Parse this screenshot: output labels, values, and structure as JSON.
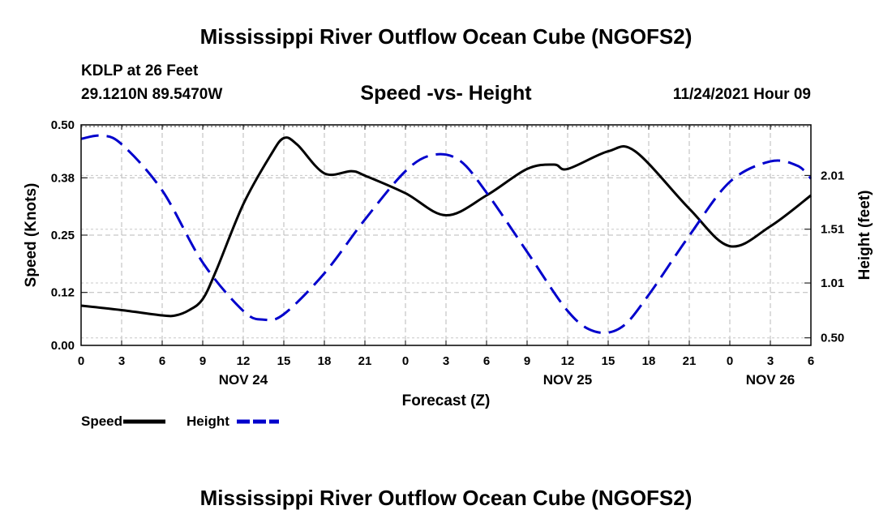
{
  "header": {
    "title": "Mississippi River Outflow Ocean Cube (NGOFS2)",
    "station": "KDLP at 26 Feet",
    "coords": "29.1210N  89.5470W",
    "subtitle": "Speed -vs- Height",
    "datetime": "11/24/2021 Hour 09"
  },
  "footer": {
    "title": "Mississippi River Outflow Ocean Cube (NGOFS2)"
  },
  "chart_data": {
    "type": "line",
    "xlabel": "Forecast (Z)",
    "ylabel_left": "Speed (Knots)",
    "ylabel_right": "Height (feet)",
    "x_range_hours": [
      0,
      54
    ],
    "x_ticks": [
      "0",
      "3",
      "6",
      "9",
      "12",
      "15",
      "18",
      "21",
      "0",
      "3",
      "6",
      "9",
      "12",
      "15",
      "18",
      "21",
      "0",
      "3",
      "6"
    ],
    "date_labels": [
      {
        "label": "NOV 24",
        "hour": 12
      },
      {
        "label": "NOV 25",
        "hour": 36
      },
      {
        "label": "NOV 26",
        "hour": 51
      }
    ],
    "left_axis": {
      "ylim": [
        0,
        0.5
      ],
      "ticks": [
        0.0,
        0.12,
        0.25,
        0.38,
        0.5
      ],
      "tick_labels": [
        "0.00",
        "0.12",
        "0.25",
        "0.38",
        "0.50"
      ]
    },
    "right_axis": {
      "ylim": [
        0.43,
        2.48
      ],
      "ticks": [
        0.5,
        1.01,
        1.51,
        2.01
      ],
      "tick_labels": [
        "0.50",
        "1.01",
        "1.51",
        "2.01"
      ]
    },
    "grid": true,
    "series": [
      {
        "name": "Speed",
        "axis": "left",
        "color": "#000000",
        "style": "solid",
        "x": [
          0,
          3,
          6,
          7,
          8,
          9,
          10,
          12,
          14,
          15,
          16,
          18,
          20,
          21,
          24,
          27,
          30,
          33,
          35,
          36,
          39,
          41,
          45,
          48,
          51,
          54
        ],
        "y": [
          0.09,
          0.08,
          0.068,
          0.068,
          0.08,
          0.105,
          0.17,
          0.32,
          0.43,
          0.47,
          0.455,
          0.39,
          0.395,
          0.385,
          0.345,
          0.295,
          0.34,
          0.4,
          0.41,
          0.4,
          0.44,
          0.44,
          0.31,
          0.225,
          0.27,
          0.34
        ]
      },
      {
        "name": "Height",
        "axis": "right",
        "color": "#0000cc",
        "style": "dashed",
        "x": [
          0,
          1.5,
          3,
          6,
          9,
          12,
          13.5,
          15,
          18,
          21,
          24,
          26,
          28,
          30,
          33,
          36,
          38,
          40,
          42,
          45,
          48,
          51,
          53,
          54
        ],
        "y": [
          2.35,
          2.38,
          2.3,
          1.87,
          1.2,
          0.75,
          0.67,
          0.72,
          1.1,
          1.6,
          2.05,
          2.2,
          2.15,
          1.85,
          1.3,
          0.75,
          0.56,
          0.6,
          0.9,
          1.45,
          1.95,
          2.14,
          2.1,
          1.98
        ]
      }
    ],
    "legend": [
      {
        "label": "Speed",
        "color": "#000000",
        "style": "solid"
      },
      {
        "label": "Height",
        "color": "#0000cc",
        "style": "dashed"
      }
    ]
  }
}
